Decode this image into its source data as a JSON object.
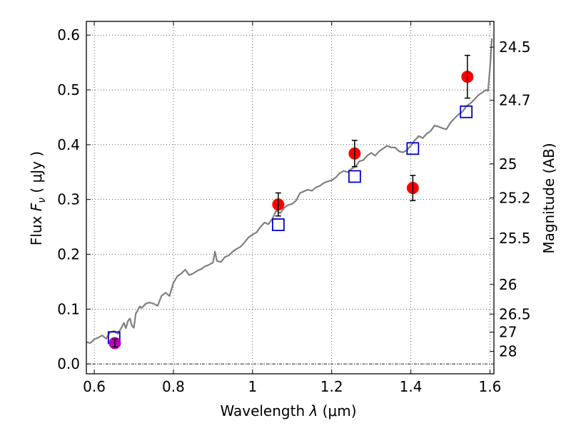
{
  "chart_data": {
    "type": "scatter",
    "title": "",
    "xlabel_text": "Wavelength ",
    "xlabel_symbol": "λ",
    "xlabel_unit": " (μm)",
    "ylabel_text": "Flux ",
    "ylabel_symbol": "F",
    "ylabel_subscript": "ν",
    "ylabel_unit": " ( μJy )",
    "y2label": "Magnitude (AB)",
    "xlim": [
      0.58,
      1.61
    ],
    "ylim": [
      -0.018,
      0.625
    ],
    "grid": true,
    "grid_style": "dotted",
    "x_ticks": [
      0.6,
      0.8,
      1.0,
      1.2,
      1.4,
      1.6
    ],
    "x_tick_labels": [
      "0.6",
      "0.8",
      "1",
      "1.2",
      "1.4",
      "1.6"
    ],
    "y_ticks": [
      0.0,
      0.1,
      0.2,
      0.3,
      0.4,
      0.5,
      0.6
    ],
    "y_tick_labels": [
      "0.0",
      "0.1",
      "0.2",
      "0.3",
      "0.4",
      "0.5",
      "0.6"
    ],
    "y2_ticks": [
      {
        "label": "24.5",
        "flux": 0.578
      },
      {
        "label": "24.7",
        "flux": 0.481
      },
      {
        "label": "25",
        "flux": 0.365
      },
      {
        "label": "25.2",
        "flux": 0.303
      },
      {
        "label": "25.5",
        "flux": 0.229
      },
      {
        "label": "26",
        "flux": 0.145
      },
      {
        "label": "26.5",
        "flux": 0.091
      },
      {
        "label": "27",
        "flux": 0.058
      },
      {
        "label": "28",
        "flux": 0.023
      }
    ],
    "series": [
      {
        "kind": "line",
        "color": "#808080",
        "x": [
          0.58,
          0.59,
          0.6,
          0.61,
          0.62,
          0.63,
          0.64,
          0.65,
          0.66,
          0.67,
          0.675,
          0.68,
          0.685,
          0.69,
          0.695,
          0.7,
          0.705,
          0.71,
          0.715,
          0.72,
          0.73,
          0.74,
          0.75,
          0.76,
          0.77,
          0.78,
          0.79,
          0.8,
          0.81,
          0.82,
          0.83,
          0.84,
          0.85,
          0.86,
          0.87,
          0.88,
          0.89,
          0.9,
          0.905,
          0.91,
          0.92,
          0.93,
          0.94,
          0.95,
          0.96,
          0.97,
          0.98,
          0.99,
          1.0,
          1.01,
          1.02,
          1.03,
          1.04,
          1.05,
          1.06,
          1.07,
          1.08,
          1.09,
          1.1,
          1.11,
          1.12,
          1.13,
          1.14,
          1.15,
          1.16,
          1.17,
          1.18,
          1.19,
          1.2,
          1.21,
          1.22,
          1.23,
          1.24,
          1.25,
          1.26,
          1.27,
          1.28,
          1.29,
          1.3,
          1.31,
          1.32,
          1.33,
          1.34,
          1.35,
          1.36,
          1.37,
          1.38,
          1.39,
          1.4,
          1.41,
          1.42,
          1.43,
          1.44,
          1.45,
          1.46,
          1.47,
          1.48,
          1.49,
          1.5,
          1.51,
          1.52,
          1.53,
          1.54,
          1.55,
          1.56,
          1.57,
          1.58,
          1.59,
          1.595,
          1.6,
          1.605
        ],
        "y": [
          0.04,
          0.038,
          0.045,
          0.048,
          0.052,
          0.046,
          0.058,
          0.06,
          0.055,
          0.068,
          0.075,
          0.065,
          0.078,
          0.083,
          0.07,
          0.066,
          0.092,
          0.098,
          0.105,
          0.102,
          0.11,
          0.112,
          0.11,
          0.106,
          0.124,
          0.13,
          0.124,
          0.148,
          0.16,
          0.165,
          0.172,
          0.162,
          0.165,
          0.17,
          0.173,
          0.178,
          0.181,
          0.185,
          0.205,
          0.188,
          0.186,
          0.195,
          0.198,
          0.205,
          0.21,
          0.214,
          0.222,
          0.231,
          0.236,
          0.24,
          0.25,
          0.258,
          0.255,
          0.265,
          0.28,
          0.275,
          0.285,
          0.29,
          0.292,
          0.298,
          0.312,
          0.315,
          0.318,
          0.316,
          0.322,
          0.325,
          0.33,
          0.333,
          0.335,
          0.34,
          0.348,
          0.352,
          0.35,
          0.356,
          0.36,
          0.37,
          0.372,
          0.38,
          0.385,
          0.38,
          0.388,
          0.393,
          0.398,
          0.395,
          0.395,
          0.388,
          0.386,
          0.39,
          0.398,
          0.408,
          0.416,
          0.412,
          0.42,
          0.425,
          0.435,
          0.433,
          0.43,
          0.428,
          0.44,
          0.448,
          0.455,
          0.46,
          0.47,
          0.475,
          0.482,
          0.49,
          0.495,
          0.5,
          0.498,
          0.54,
          0.594
        ]
      },
      {
        "kind": "markers",
        "marker": "open-square",
        "color": "#0000cc",
        "x": [
          0.65,
          1.065,
          1.258,
          1.405,
          1.54
        ],
        "y": [
          0.048,
          0.254,
          0.342,
          0.393,
          0.46
        ]
      },
      {
        "kind": "errorbar",
        "marker": "filled-circle",
        "color": "#ff0000",
        "x": [
          1.065,
          1.258,
          1.405,
          1.543
        ],
        "y": [
          0.291,
          0.384,
          0.321,
          0.524
        ],
        "yerr": [
          0.021,
          0.024,
          0.023,
          0.039
        ]
      },
      {
        "kind": "errorbar",
        "marker": "filled-circle",
        "color": "#bb00bb",
        "x": [
          0.652
        ],
        "y": [
          0.038
        ],
        "yerr": [
          0.007
        ]
      }
    ]
  }
}
